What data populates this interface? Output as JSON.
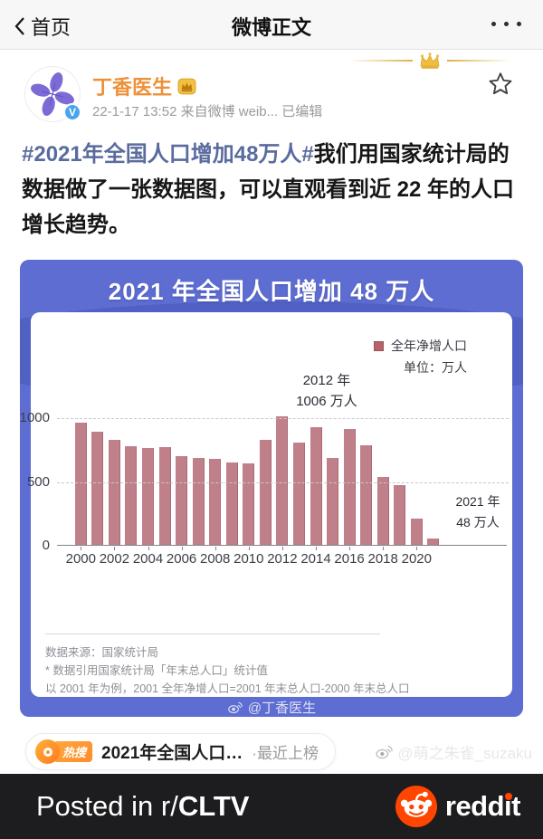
{
  "nav": {
    "back_label": "首页",
    "title": "微博正文"
  },
  "post": {
    "author_name": "丁香医生",
    "verified_letter": "V",
    "meta": "22-1-17 13:52  来自微博 weib...  已编辑",
    "text": {
      "hashtag": "#2021年全国人口增加48万人#",
      "body": "我们用国家统计局的数据做了一张数据图，可以直观看到近 22 年的人口增长趋势。"
    }
  },
  "chart_card": {
    "title": "2021 年全国人口增加 48 万人",
    "legend_label": "全年净增人口",
    "unit_label": "单位：万人",
    "peak_annotation": {
      "line1": "2012 年",
      "line2": "1006 万人"
    },
    "last_annotation": {
      "line1": "2021 年",
      "line2": "48 万人"
    },
    "source": "数据来源：国家统计局",
    "note1": "* 数据引用国家统计局「年末总人口」统计值",
    "note2": "以 2001 年为例，2001 全年净增人口=2001 年末总人口-2000 年末总人口",
    "credit": "@丁香医生"
  },
  "chart_data": {
    "type": "bar",
    "title": "2021 年全国人口增加 48 万人",
    "legend": [
      "全年净增人口"
    ],
    "legend_position": "top-right",
    "unit": "万人",
    "categories": [
      2000,
      2001,
      2002,
      2003,
      2004,
      2005,
      2006,
      2007,
      2008,
      2009,
      2010,
      2011,
      2012,
      2013,
      2014,
      2015,
      2016,
      2017,
      2018,
      2019,
      2020,
      2021
    ],
    "values": [
      957,
      884,
      826,
      774,
      761,
      768,
      692,
      681,
      673,
      648,
      641,
      825,
      1006,
      804,
      920,
      680,
      906,
      779,
      530,
      467,
      204,
      48
    ],
    "xlabel": "",
    "ylabel": "万人",
    "ylim": [
      0,
      1000
    ],
    "yticks": [
      0,
      500,
      1000
    ],
    "xticks": [
      2000,
      2002,
      2004,
      2006,
      2008,
      2010,
      2012,
      2014,
      2016,
      2018,
      2020
    ],
    "grid": "dashed-horizontal",
    "bar_color": "#c0808a",
    "annotations": [
      {
        "x": 2012,
        "text": "2012 年 1006 万人"
      },
      {
        "x": 2021,
        "text": "2021 年 48 万人"
      }
    ],
    "source": "国家统计局"
  },
  "hot_search": {
    "tag": "热搜",
    "text": "2021年全国人口…",
    "suffix": "·最近上榜"
  },
  "watermark_text": "@萌之朱雀_suzaku",
  "reddit_bar": {
    "prefix": "Posted in r/",
    "subreddit": "CLTV",
    "brand": "reddit"
  },
  "colors": {
    "accent_blue_card": "#5d6dd1",
    "bar": "#c0808a",
    "legend_swatch": "#b5646c",
    "author_orange": "#ee9038",
    "hashtag_blue": "#5a6b9e",
    "reddit_orange": "#ff4500",
    "banner_dark": "#1d1d1f"
  }
}
